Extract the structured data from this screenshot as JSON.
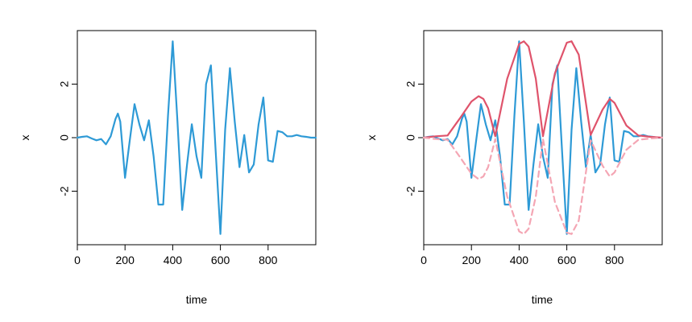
{
  "chart_data": [
    {
      "type": "line",
      "title": "",
      "xlabel": "time",
      "ylabel": "x",
      "xlim": [
        0,
        1000
      ],
      "ylim": [
        -4.0,
        4.0
      ],
      "xticks": [
        "0",
        "200",
        "400",
        "600",
        "800"
      ],
      "yticks": [
        "-2",
        "0",
        "2"
      ],
      "grid": false,
      "legend": "none",
      "series": [
        {
          "color": "#2E9AD6",
          "style": "solid",
          "x": [
            0,
            20,
            40,
            60,
            80,
            100,
            120,
            140,
            160,
            170,
            180,
            200,
            220,
            240,
            260,
            280,
            300,
            320,
            340,
            360,
            380,
            400,
            420,
            440,
            460,
            480,
            500,
            520,
            540,
            560,
            580,
            600,
            620,
            640,
            660,
            680,
            700,
            720,
            740,
            760,
            780,
            800,
            820,
            840,
            860,
            880,
            900,
            920,
            940,
            960,
            980,
            1000
          ],
          "y": [
            0,
            0.03,
            0.05,
            -0.03,
            -0.1,
            -0.05,
            -0.25,
            0.05,
            0.7,
            0.9,
            0.6,
            -1.5,
            -0.1,
            1.25,
            0.5,
            -0.1,
            0.65,
            -0.7,
            -2.5,
            -2.5,
            0.8,
            3.6,
            0.6,
            -2.7,
            -1.0,
            0.5,
            -0.7,
            -1.5,
            2.0,
            2.7,
            -0.5,
            -3.6,
            0.3,
            2.6,
            0.6,
            -1.1,
            0.1,
            -1.3,
            -1.0,
            0.5,
            1.5,
            -0.85,
            -0.9,
            0.25,
            0.2,
            0.05,
            0.05,
            0.1,
            0.05,
            0.03,
            0,
            0
          ]
        }
      ]
    },
    {
      "type": "line",
      "title": "",
      "xlabel": "time",
      "ylabel": "x",
      "xlim": [
        0,
        1000
      ],
      "ylim": [
        -4.0,
        4.0
      ],
      "xticks": [
        "0",
        "200",
        "400",
        "600",
        "800"
      ],
      "yticks": [
        "-2",
        "0",
        "2"
      ],
      "grid": false,
      "legend": "none",
      "series": [
        {
          "color": "#2E9AD6",
          "style": "solid",
          "x": [
            0,
            20,
            40,
            60,
            80,
            100,
            120,
            140,
            160,
            170,
            180,
            200,
            220,
            240,
            260,
            280,
            300,
            320,
            340,
            360,
            380,
            400,
            420,
            440,
            460,
            480,
            500,
            520,
            540,
            560,
            580,
            600,
            620,
            640,
            660,
            680,
            700,
            720,
            740,
            760,
            780,
            800,
            820,
            840,
            860,
            880,
            900,
            920,
            940,
            960,
            980,
            1000
          ],
          "y": [
            0,
            0.03,
            0.05,
            -0.03,
            -0.1,
            -0.05,
            -0.25,
            0.05,
            0.7,
            0.9,
            0.6,
            -1.5,
            -0.1,
            1.25,
            0.5,
            -0.1,
            0.65,
            -0.7,
            -2.5,
            -2.5,
            0.8,
            3.6,
            0.6,
            -2.7,
            -1.0,
            0.5,
            -0.7,
            -1.5,
            2.0,
            2.7,
            -0.5,
            -3.6,
            0.3,
            2.6,
            0.6,
            -1.1,
            0.1,
            -1.3,
            -1.0,
            0.5,
            1.5,
            -0.85,
            -0.9,
            0.25,
            0.2,
            0.05,
            0.05,
            0.1,
            0.05,
            0.03,
            0,
            0
          ]
        },
        {
          "color": "#DF536B",
          "style": "solid",
          "x": [
            0,
            50,
            100,
            150,
            200,
            230,
            250,
            270,
            300,
            350,
            400,
            420,
            440,
            470,
            500,
            550,
            600,
            620,
            650,
            700,
            750,
            780,
            800,
            850,
            900,
            950,
            1000
          ],
          "y": [
            0,
            0.05,
            0.08,
            0.7,
            1.35,
            1.55,
            1.45,
            1.1,
            0.05,
            2.2,
            3.5,
            3.6,
            3.4,
            2.2,
            0.05,
            2.4,
            3.55,
            3.6,
            3.1,
            0.1,
            1.05,
            1.45,
            1.3,
            0.45,
            0.08,
            0.03,
            0
          ]
        },
        {
          "color": "#F4A6B4",
          "style": "dashed",
          "x": [
            0,
            50,
            100,
            150,
            200,
            230,
            250,
            270,
            300,
            350,
            400,
            420,
            440,
            470,
            500,
            550,
            600,
            620,
            650,
            700,
            750,
            780,
            800,
            850,
            900,
            950,
            1000
          ],
          "y": [
            0,
            -0.05,
            -0.08,
            -0.7,
            -1.35,
            -1.55,
            -1.45,
            -1.1,
            -0.05,
            -2.2,
            -3.5,
            -3.6,
            -3.4,
            -2.2,
            -0.05,
            -2.4,
            -3.55,
            -3.6,
            -3.1,
            -0.1,
            -1.05,
            -1.45,
            -1.3,
            -0.45,
            -0.08,
            -0.03,
            0
          ]
        }
      ]
    }
  ]
}
